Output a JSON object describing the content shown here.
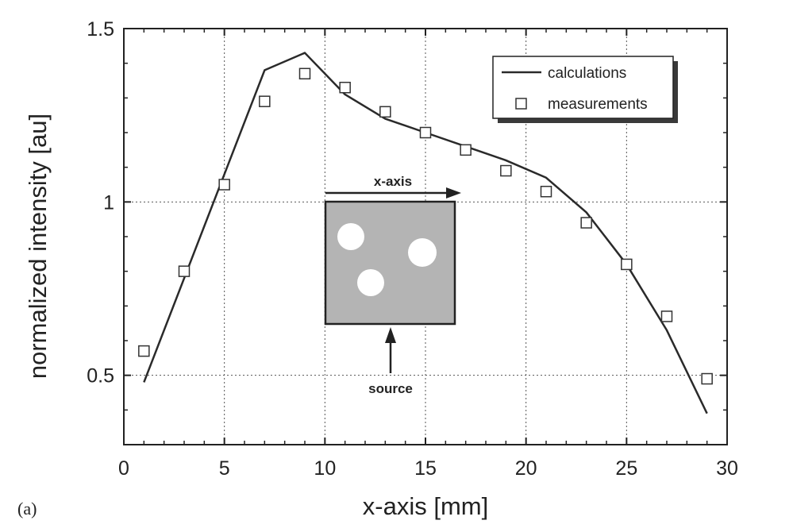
{
  "panel_label": "(a)",
  "colors": {
    "line": "#2a2a2a",
    "grid": "#555555",
    "inset_fill": "#b4b4b4",
    "hole": "#ffffff",
    "legend_shadow": "#3a3a3a"
  },
  "inset": {
    "top_arrow_label": "x-axis",
    "bottom_arrow_label": "source"
  },
  "chart_data": {
    "type": "line",
    "title": "",
    "xlabel": "x-axis [mm]",
    "ylabel": "normalized intensity [au]",
    "xlim": [
      0,
      30
    ],
    "ylim": [
      0.3,
      1.5
    ],
    "xticks": [
      0,
      5,
      10,
      15,
      20,
      25,
      30
    ],
    "xtick_labels": [
      "0",
      "5",
      "10",
      "15",
      "20",
      "25",
      "30"
    ],
    "yticks": [
      0.5,
      1,
      1.5
    ],
    "ytick_labels": [
      "0.5",
      "1",
      "1.5"
    ],
    "grid": true,
    "legend_position": "top-right",
    "series": [
      {
        "name": "calculations",
        "style": "line",
        "x": [
          1,
          3,
          5,
          7,
          9,
          11,
          13,
          15,
          17,
          19,
          21,
          23,
          25,
          27,
          29
        ],
        "y": [
          0.48,
          0.78,
          1.08,
          1.38,
          1.43,
          1.31,
          1.24,
          1.2,
          1.16,
          1.12,
          1.07,
          0.97,
          0.82,
          0.63,
          0.39
        ]
      },
      {
        "name": "measurements",
        "style": "open-square",
        "x": [
          1,
          3,
          5,
          7,
          9,
          11,
          13,
          15,
          17,
          19,
          21,
          23,
          25,
          27,
          29
        ],
        "y": [
          0.57,
          0.8,
          1.05,
          1.29,
          1.37,
          1.33,
          1.26,
          1.2,
          1.15,
          1.09,
          1.03,
          0.94,
          0.82,
          0.67,
          0.49
        ]
      }
    ]
  }
}
